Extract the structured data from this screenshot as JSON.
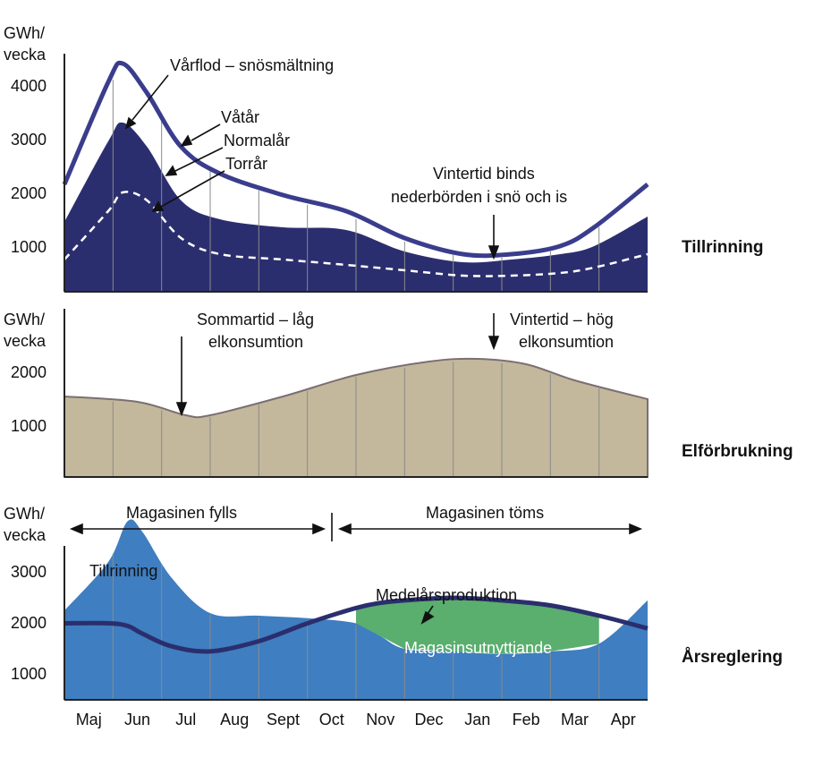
{
  "colors": {
    "dark_navy": "#2b2e6e",
    "wet_line": "#3a3d8c",
    "tan_fill": "#c3b89c",
    "tan_edge": "#7a6f72",
    "blue_fill": "#3f7ec0",
    "green_fill": "#5aae6e",
    "grid": "#8a8a8a"
  },
  "months": [
    "Maj",
    "Jun",
    "Jul",
    "Aug",
    "Sept",
    "Oct",
    "Nov",
    "Dec",
    "Jan",
    "Feb",
    "Mar",
    "Apr"
  ],
  "chart_data": [
    {
      "type": "area",
      "side_title": "Tillrinning",
      "ylabel_line1": "GWh/",
      "ylabel_line2": "vecka",
      "yticks": [
        "4000",
        "3000",
        "2000",
        "1000"
      ],
      "ytick_values": [
        4000,
        3000,
        2000,
        1000
      ],
      "ylim": [
        0,
        4400
      ],
      "x": [
        0.5,
        0.9,
        1.2,
        1.7,
        2.4,
        3.2,
        4.5,
        5.8,
        7.0,
        8.2,
        9.2,
        10.2,
        10.9,
        11.5
      ],
      "series": [
        {
          "name": "Våtår",
          "style": "line",
          "values": [
            2000,
            3900,
            4250,
            3700,
            2700,
            2200,
            1800,
            1500,
            1000,
            700,
            700,
            850,
            1200,
            2000
          ]
        },
        {
          "name": "Normalår",
          "style": "filled",
          "values": [
            1300,
            2800,
            3150,
            2700,
            1700,
            1350,
            1200,
            1150,
            750,
            550,
            600,
            700,
            850,
            1400
          ]
        },
        {
          "name": "Torrår",
          "style": "dashed",
          "values": [
            600,
            1500,
            1850,
            1700,
            1000,
            700,
            600,
            500,
            400,
            300,
            300,
            350,
            450,
            700
          ]
        }
      ],
      "annotations": [
        "Vårflod – snösmältning",
        "Våtår",
        "Normalår",
        "Torrår",
        "Vintertid binds",
        "nederbörden i snö och is"
      ]
    },
    {
      "type": "area",
      "side_title": "Elförbrukning",
      "ylabel_line1": "GWh/",
      "ylabel_line2": "vecka",
      "yticks": [
        "2000",
        "1000"
      ],
      "ytick_values": [
        2000,
        1000
      ],
      "ylim": [
        0,
        2600
      ],
      "x": [
        0.5,
        1.5,
        2.5,
        3.0,
        4.5,
        6.0,
        7.5,
        8.5,
        9.5,
        10.5,
        11.5
      ],
      "series": [
        {
          "name": "Elförbrukning",
          "style": "filled",
          "values": [
            1500,
            1400,
            1150,
            1150,
            1500,
            1900,
            2150,
            2200,
            2100,
            1800,
            1450
          ]
        }
      ],
      "annotations": [
        "Sommartid – låg",
        "elkonsumtion",
        "Vintertid – hög",
        "elkonsumtion"
      ]
    },
    {
      "type": "area",
      "side_title": "Årsreglering",
      "ylabel_line1": "GWh/",
      "ylabel_line2": "vecka",
      "yticks": [
        "3000",
        "2000",
        "1000"
      ],
      "ytick_values": [
        3000,
        2000,
        1000
      ],
      "ylim": [
        0,
        3800
      ],
      "x": [
        0.5,
        0.9,
        1.3,
        1.6,
        2.2,
        3.0,
        4.0,
        5.0,
        6.0,
        6.5,
        7.0,
        8.0,
        9.0,
        10.0,
        11.0,
        11.5
      ],
      "series": [
        {
          "name": "Tillrinning",
          "style": "filled",
          "values": [
            1750,
            2700,
            3500,
            3300,
            2400,
            1700,
            1650,
            1600,
            1500,
            1250,
            1000,
            950,
            900,
            950,
            1100,
            1950
          ]
        },
        {
          "name": "Medelårsproduktion",
          "style": "line",
          "values": [
            1500,
            1500,
            1450,
            1300,
            1050,
            950,
            1150,
            1500,
            1800,
            1900,
            1950,
            2000,
            1950,
            1850,
            1650,
            1400
          ]
        }
      ],
      "annotations": [
        "Magasinen fylls",
        "Magasinen töms",
        "Tillrinning",
        "Medelårsproduktion",
        "Magasinsutnyttjande"
      ]
    }
  ]
}
